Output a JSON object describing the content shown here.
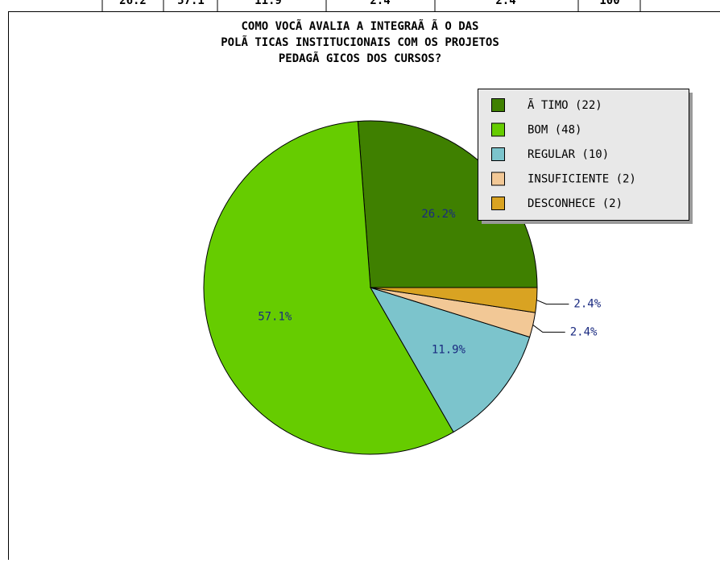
{
  "table": {
    "cells": [
      "26.2",
      "57.1",
      "11.9",
      "2.4",
      "2.4",
      "100"
    ]
  },
  "chart_data": {
    "type": "pie",
    "title": [
      "COMO VOCÃ  AVALIA A INTEGRAÃ Ã O DAS",
      "POLÃ TICAS INSTITUCIONAIS COM OS PROJETOS",
      "PEDAGÃ GICOS DOS CURSOS?"
    ],
    "categories": [
      "Ã TIMO (22)",
      "BOM (48)",
      "REGULAR (10)",
      "INSUFICIENTE (2)",
      "DESCONHECE (2)"
    ],
    "values": [
      26.2,
      57.1,
      11.9,
      2.4,
      2.4
    ],
    "value_labels": [
      "26.2%",
      "57.1%",
      "11.9%",
      "2.4%",
      "2.4%"
    ],
    "colors": [
      "#3f8000",
      "#66cc00",
      "#7cc4cc",
      "#f2c896",
      "#d9a322"
    ],
    "legend": "top-right"
  }
}
